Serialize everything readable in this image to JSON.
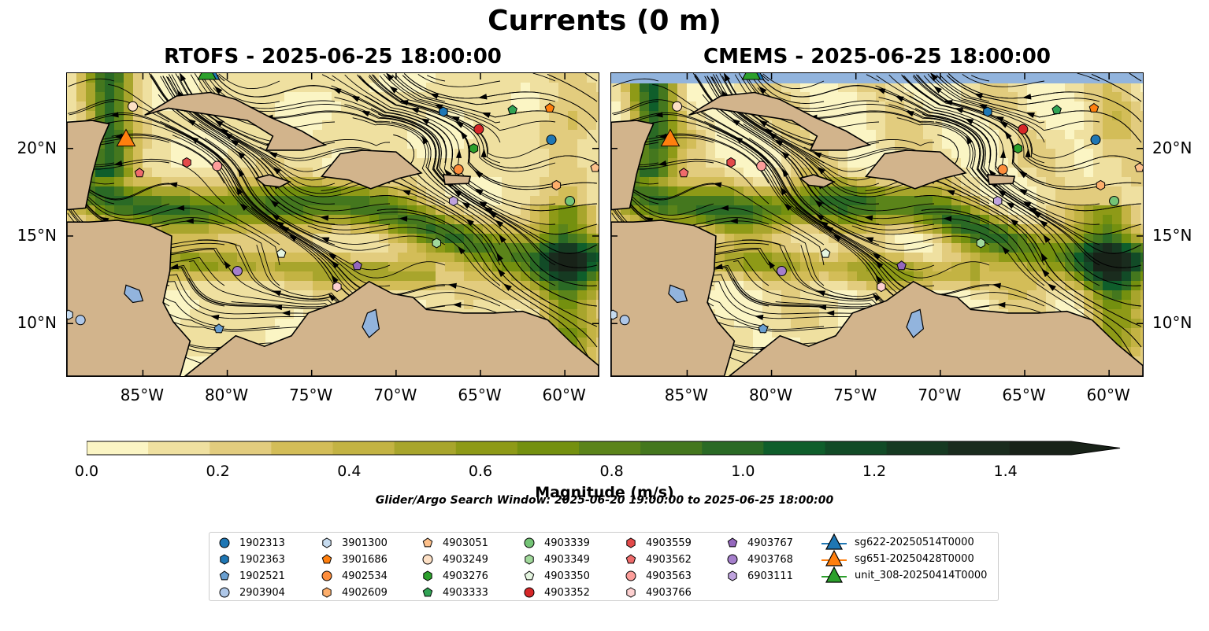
{
  "figure": {
    "suptitle": "Currents (0 m)",
    "left_title": "RTOFS - 2025-06-25 18:00:00",
    "right_title": "CMEMS - 2025-06-25 18:00:00",
    "search_window": "Glider/Argo Search Window: 2025-06-20 19:00:00 to 2025-06-25 18:00:00"
  },
  "map": {
    "lon_range": [
      -89.5,
      -58.0
    ],
    "lat_range": [
      7.0,
      24.3
    ],
    "lon_tick_labels": [
      "85°W",
      "80°W",
      "75°W",
      "70°W",
      "65°W",
      "60°W"
    ],
    "lon_tick_values": [
      -85,
      -80,
      -75,
      -70,
      -65,
      -60
    ],
    "lat_tick_labels": [
      "10°N",
      "15°N",
      "20°N"
    ],
    "lat_tick_values": [
      10,
      15,
      20
    ],
    "land_color": "#d2b48c",
    "water_color": "#92b4dd",
    "streamline_color": "#000000"
  },
  "colorbar": {
    "label": "Magnitude (m/s)",
    "min": 0.0,
    "max": 1.5,
    "extend": "max",
    "tick_labels": [
      "0.0",
      "0.2",
      "0.4",
      "0.6",
      "0.8",
      "1.0",
      "1.2",
      "1.4"
    ],
    "tick_values": [
      0.0,
      0.2,
      0.4,
      0.6,
      0.8,
      1.0,
      1.2,
      1.4
    ],
    "colors": [
      "#fbf5c4",
      "#efe0a0",
      "#e2cc7e",
      "#d3bd58",
      "#c3b343",
      "#a8a52c",
      "#8e9a17",
      "#74900f",
      "#5b841a",
      "#44771e",
      "#2a6a25",
      "#0f5e2b",
      "#124b27",
      "#163a22",
      "#1a2c1e",
      "#182218"
    ]
  },
  "legend": {
    "columns": [
      [
        {
          "label": "1902313",
          "marker": "circle",
          "color": "#1f77b4"
        },
        {
          "label": "1902363",
          "marker": "hexagon",
          "color": "#1f77b4"
        },
        {
          "label": "1902521",
          "marker": "pentagon",
          "color": "#6a9fd0"
        },
        {
          "label": "2903904",
          "marker": "circle",
          "color": "#aec7e8"
        }
      ],
      [
        {
          "label": "3901300",
          "marker": "hexagon",
          "color": "#c6dbef"
        },
        {
          "label": "3901686",
          "marker": "pentagon",
          "color": "#ff7f0e"
        },
        {
          "label": "4902534",
          "marker": "circle",
          "color": "#fd8d3c"
        },
        {
          "label": "4902609",
          "marker": "hexagon",
          "color": "#fdae6b"
        }
      ],
      [
        {
          "label": "4903051",
          "marker": "pentagon",
          "color": "#fdc08a"
        },
        {
          "label": "4903249",
          "marker": "circle",
          "color": "#fde0c5"
        },
        {
          "label": "4903276",
          "marker": "hexagon",
          "color": "#2ca02c"
        },
        {
          "label": "4903333",
          "marker": "pentagon",
          "color": "#31a354"
        }
      ],
      [
        {
          "label": "4903339",
          "marker": "circle",
          "color": "#74c476"
        },
        {
          "label": "4903349",
          "marker": "hexagon",
          "color": "#a1d99b"
        },
        {
          "label": "4903350",
          "marker": "pentagon",
          "color": "#e5f5e0"
        },
        {
          "label": "4903352",
          "marker": "circle",
          "color": "#d62728"
        }
      ],
      [
        {
          "label": "4903559",
          "marker": "hexagon",
          "color": "#e34a4a"
        },
        {
          "label": "4903562",
          "marker": "pentagon",
          "color": "#ef6b6b"
        },
        {
          "label": "4903563",
          "marker": "circle",
          "color": "#fc9d9a"
        },
        {
          "label": "4903766",
          "marker": "hexagon",
          "color": "#fdd0d0"
        }
      ],
      [
        {
          "label": "4903767",
          "marker": "pentagon",
          "color": "#9467bd"
        },
        {
          "label": "4903768",
          "marker": "circle",
          "color": "#a57fcc"
        },
        {
          "label": "6903111",
          "marker": "hexagon",
          "color": "#bfa3de"
        }
      ],
      [
        {
          "label": "sg622-20250514T0000",
          "marker": "triangle",
          "color": "#1f77b4"
        },
        {
          "label": "sg651-20250428T0000",
          "marker": "triangle",
          "color": "#ff7f0e"
        },
        {
          "label": "unit_308-20250414T0000",
          "marker": "triangle",
          "color": "#2ca02c"
        }
      ]
    ]
  },
  "floats": [
    {
      "id": "1902313",
      "lon": -60.8,
      "lat": 20.5
    },
    {
      "id": "1902363",
      "lon": -67.2,
      "lat": 22.1
    },
    {
      "id": "1902521",
      "lon": -80.5,
      "lat": 9.7
    },
    {
      "id": "2903904",
      "lon": -88.7,
      "lat": 10.2
    },
    {
      "id": "3901300",
      "lon": -89.4,
      "lat": 10.5
    },
    {
      "id": "3901686",
      "lon": -60.9,
      "lat": 22.3
    },
    {
      "id": "4902534",
      "lon": -66.3,
      "lat": 18.8
    },
    {
      "id": "4902609",
      "lon": -60.5,
      "lat": 17.9
    },
    {
      "id": "4903051",
      "lon": -58.2,
      "lat": 18.9
    },
    {
      "id": "4903249",
      "lon": -85.6,
      "lat": 22.4
    },
    {
      "id": "4903276",
      "lon": -65.4,
      "lat": 20.0
    },
    {
      "id": "4903333",
      "lon": -63.1,
      "lat": 22.2
    },
    {
      "id": "4903339",
      "lon": -59.7,
      "lat": 17.0
    },
    {
      "id": "4903349",
      "lon": -67.6,
      "lat": 14.6
    },
    {
      "id": "4903350",
      "lon": -76.8,
      "lat": 14.0
    },
    {
      "id": "4903352",
      "lon": -65.1,
      "lat": 21.1
    },
    {
      "id": "4903559",
      "lon": -82.4,
      "lat": 19.2
    },
    {
      "id": "4903562",
      "lon": -85.2,
      "lat": 18.6
    },
    {
      "id": "4903563",
      "lon": -80.6,
      "lat": 19.0
    },
    {
      "id": "4903766",
      "lon": -73.5,
      "lat": 12.1
    },
    {
      "id": "4903767",
      "lon": -72.3,
      "lat": 13.3
    },
    {
      "id": "4903768",
      "lon": -79.4,
      "lat": 13.0
    },
    {
      "id": "6903111",
      "lon": -66.6,
      "lat": 17.0
    }
  ],
  "gliders": [
    {
      "id": "sg622-20250514T0000",
      "lon": -81.0,
      "lat": 24.3
    },
    {
      "id": "sg651-20250428T0000",
      "lon": -86.0,
      "lat": 20.5
    },
    {
      "id": "unit_308-20250414T0000",
      "lon": -81.2,
      "lat": 24.3
    }
  ]
}
